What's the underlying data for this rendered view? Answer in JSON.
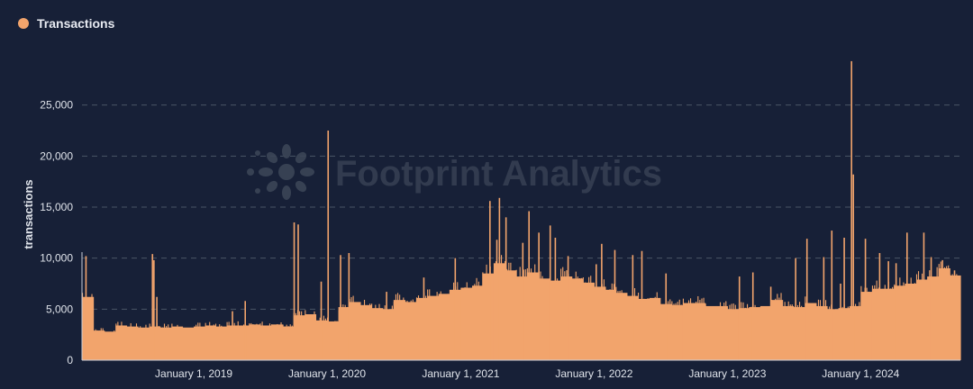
{
  "legend": {
    "label": "Transactions"
  },
  "watermark": "Footprint Analytics",
  "colors": {
    "background": "#172037",
    "series": "#f2a46c",
    "grid": "#4a5466",
    "axis_text": "#dfe3ea",
    "watermark": "#3b4557"
  },
  "chart_data": {
    "type": "bar",
    "title": "",
    "xlabel": "",
    "ylabel": "transactions",
    "ylim": [
      0,
      30000
    ],
    "yticks": [
      0,
      5000,
      10000,
      15000,
      20000,
      25000
    ],
    "ytick_labels": [
      "0",
      "5,000",
      "10,000",
      "15,000",
      "20,000",
      "25,000"
    ],
    "xlim": [
      "2018-03-01",
      "2024-09-30"
    ],
    "xticks": [
      "2019-01-01",
      "2020-01-01",
      "2021-01-01",
      "2022-01-01",
      "2023-01-01",
      "2024-01-01"
    ],
    "xtick_labels": [
      "January 1, 2019",
      "January 1, 2020",
      "January 1, 2021",
      "January 1, 2022",
      "January 1, 2023",
      "January 1, 2024"
    ],
    "grid": true,
    "legend_position": "top-left",
    "series": [
      {
        "name": "Transactions",
        "x_interval": "month",
        "x": [
          "2018-03",
          "2018-04",
          "2018-05",
          "2018-06",
          "2018-07",
          "2018-08",
          "2018-09",
          "2018-10",
          "2018-11",
          "2018-12",
          "2019-01",
          "2019-02",
          "2019-03",
          "2019-04",
          "2019-05",
          "2019-06",
          "2019-07",
          "2019-08",
          "2019-09",
          "2019-10",
          "2019-11",
          "2019-12",
          "2020-01",
          "2020-02",
          "2020-03",
          "2020-04",
          "2020-05",
          "2020-06",
          "2020-07",
          "2020-08",
          "2020-09",
          "2020-10",
          "2020-11",
          "2020-12",
          "2021-01",
          "2021-02",
          "2021-03",
          "2021-04",
          "2021-05",
          "2021-06",
          "2021-07",
          "2021-08",
          "2021-09",
          "2021-10",
          "2021-11",
          "2021-12",
          "2022-01",
          "2022-02",
          "2022-03",
          "2022-04",
          "2022-05",
          "2022-06",
          "2022-07",
          "2022-08",
          "2022-09",
          "2022-10",
          "2022-11",
          "2022-12",
          "2023-01",
          "2023-02",
          "2023-03",
          "2023-04",
          "2023-05",
          "2023-06",
          "2023-07",
          "2023-08",
          "2023-09",
          "2023-10",
          "2023-11",
          "2023-12",
          "2024-01",
          "2024-02",
          "2024-03",
          "2024-04",
          "2024-05",
          "2024-06",
          "2024-07",
          "2024-08",
          "2024-09"
        ],
        "values": [
          6200,
          2900,
          2800,
          3400,
          3300,
          3200,
          3300,
          3200,
          3300,
          3200,
          3300,
          3400,
          3300,
          3400,
          3400,
          3500,
          3400,
          3500,
          3300,
          4400,
          4500,
          3900,
          3800,
          5200,
          5700,
          5400,
          5100,
          5000,
          5900,
          5700,
          6100,
          6300,
          6500,
          6900,
          7100,
          7300,
          8500,
          9500,
          8800,
          8200,
          8600,
          8000,
          7800,
          8200,
          8000,
          7600,
          7200,
          6900,
          6600,
          6300,
          6000,
          6100,
          5500,
          5400,
          5600,
          5600,
          5300,
          5300,
          5000,
          5100,
          5200,
          5300,
          5900,
          5300,
          5200,
          5600,
          5300,
          5000,
          5100,
          5300,
          6700,
          7000,
          7000,
          7300,
          7500,
          7900,
          8200,
          9000,
          8300
        ],
        "peaks": [
          [
            "2018-03-10",
            10200
          ],
          [
            "2018-09-08",
            10400
          ],
          [
            "2018-09-12",
            9800
          ],
          [
            "2018-09-20",
            6200
          ],
          [
            "2019-04-15",
            4800
          ],
          [
            "2019-05-20",
            5800
          ],
          [
            "2019-10-01",
            13500
          ],
          [
            "2019-10-12",
            13300
          ],
          [
            "2019-12-14",
            7700
          ],
          [
            "2020-01-02",
            22500
          ],
          [
            "2020-02-05",
            10300
          ],
          [
            "2020-02-28",
            10500
          ],
          [
            "2020-06-10",
            6700
          ],
          [
            "2020-09-20",
            8100
          ],
          [
            "2020-12-15",
            10000
          ],
          [
            "2021-03-20",
            15600
          ],
          [
            "2021-04-08",
            11800
          ],
          [
            "2021-04-15",
            15900
          ],
          [
            "2021-05-03",
            14000
          ],
          [
            "2021-06-18",
            11500
          ],
          [
            "2021-07-05",
            14600
          ],
          [
            "2021-08-01",
            12500
          ],
          [
            "2021-09-01",
            13200
          ],
          [
            "2021-09-15",
            12000
          ],
          [
            "2021-10-20",
            10200
          ],
          [
            "2022-01-05",
            9400
          ],
          [
            "2022-01-20",
            11400
          ],
          [
            "2022-02-25",
            10800
          ],
          [
            "2022-04-15",
            10300
          ],
          [
            "2022-05-10",
            10700
          ],
          [
            "2022-07-15",
            8500
          ],
          [
            "2023-02-01",
            8200
          ],
          [
            "2023-03-10",
            8600
          ],
          [
            "2023-04-28",
            7200
          ],
          [
            "2023-07-05",
            10000
          ],
          [
            "2023-08-05",
            11900
          ],
          [
            "2023-09-20",
            10100
          ],
          [
            "2023-10-12",
            12700
          ],
          [
            "2023-11-05",
            7500
          ],
          [
            "2023-11-15",
            12000
          ],
          [
            "2023-12-05",
            29300
          ],
          [
            "2023-12-10",
            18200
          ],
          [
            "2024-01-12",
            11900
          ],
          [
            "2024-02-20",
            10500
          ],
          [
            "2024-03-15",
            9700
          ],
          [
            "2024-04-05",
            9500
          ],
          [
            "2024-05-05",
            12500
          ],
          [
            "2024-06-20",
            12500
          ],
          [
            "2024-07-10",
            10100
          ],
          [
            "2024-08-10",
            9800
          ],
          [
            "2024-09-12",
            8800
          ]
        ]
      }
    ]
  }
}
